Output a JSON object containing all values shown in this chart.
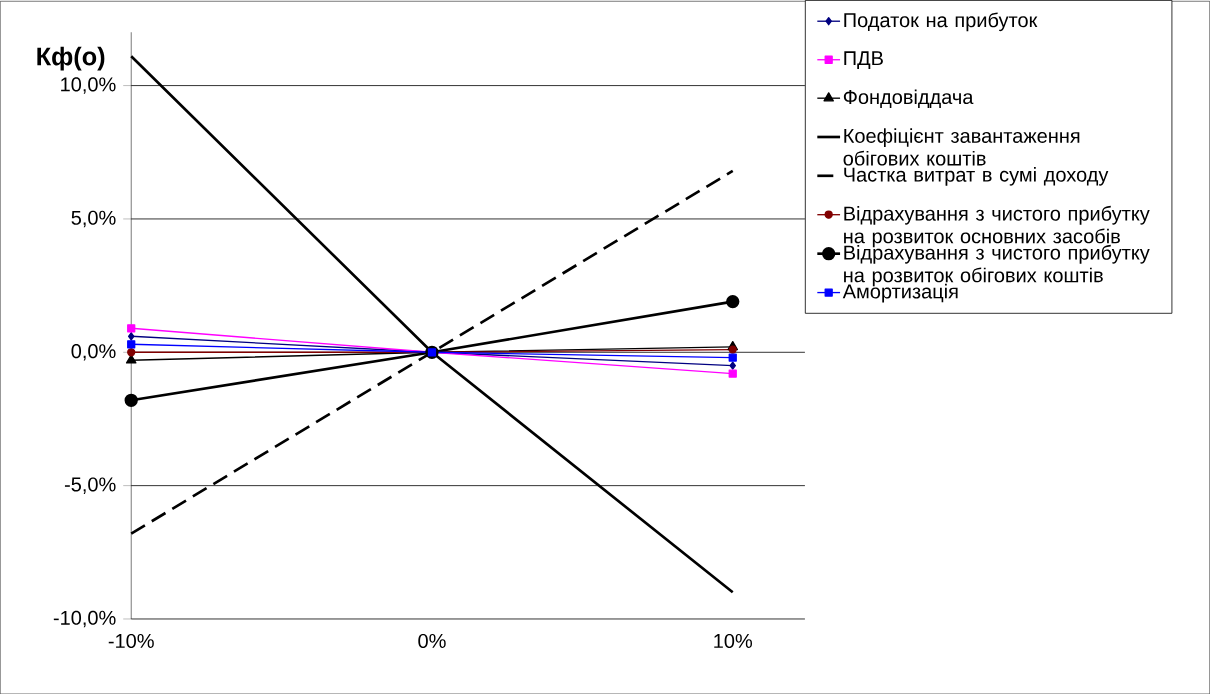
{
  "chart_data": {
    "type": "line",
    "ylabel": "Кф(о)",
    "categories": [
      "-10%",
      "0%",
      "10%"
    ],
    "ylim": [
      -10,
      12
    ],
    "yticks": [
      {
        "value": -10,
        "label": "-10,0%"
      },
      {
        "value": -5,
        "label": "-5,0%"
      },
      {
        "value": 0,
        "label": "0,0%"
      },
      {
        "value": 5,
        "label": "5,0%"
      },
      {
        "value": 10,
        "label": "10,0%"
      }
    ],
    "grid": "y",
    "legend": "right",
    "series": [
      {
        "name": "Податок на прибуток",
        "color": "#000080",
        "marker": "diamond",
        "values": [
          0.6,
          0,
          -0.5
        ]
      },
      {
        "name": "ПДВ",
        "color": "#ff00ff",
        "marker": "square",
        "values": [
          0.9,
          0,
          -0.8
        ]
      },
      {
        "name": "Фондовіддача",
        "color": "#000000",
        "marker": "triangle",
        "values": [
          -0.3,
          0,
          0.2
        ]
      },
      {
        "name": "Коефіцієнт завантаження обігових коштів",
        "color": "#000000",
        "marker": "none",
        "line_style": "solid",
        "values": [
          11.1,
          0,
          -9.0
        ]
      },
      {
        "name": "Частка витрат в сумі доходу",
        "color": "#000000",
        "marker": "none",
        "line_style": "dashed",
        "values": [
          -6.8,
          0,
          6.8
        ]
      },
      {
        "name": "Відрахування з чистого прибутку на розвиток основних засобів",
        "color": "#800000",
        "marker": "circle",
        "values": [
          0,
          0,
          0.1
        ]
      },
      {
        "name": "Відрахування з чистого прибутку на розвиток обігових коштів",
        "color": "#000000",
        "marker": "circle",
        "line_style": "solid",
        "values": [
          -1.8,
          0,
          1.9
        ]
      },
      {
        "name": "Амортизація",
        "color": "#0000ff",
        "marker": "square",
        "values": [
          0.3,
          0,
          -0.2
        ]
      }
    ]
  }
}
